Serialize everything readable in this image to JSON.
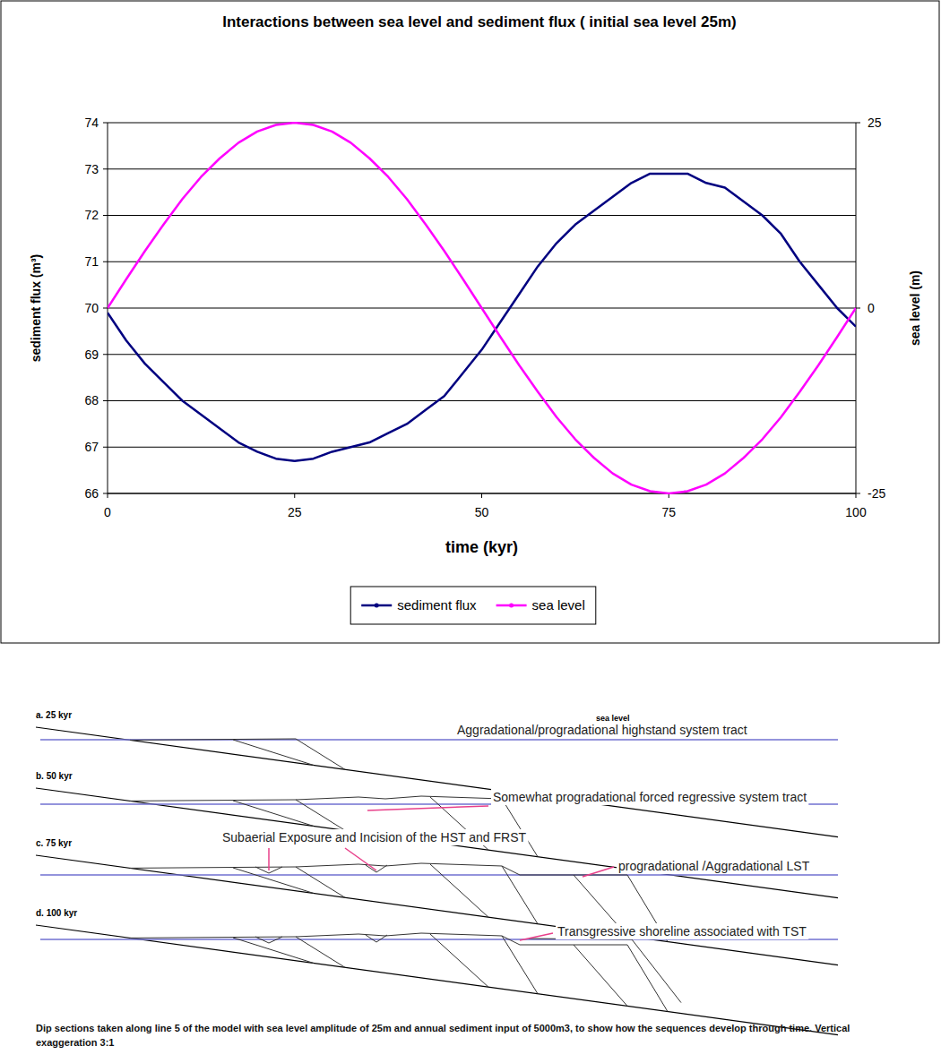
{
  "chart_data": {
    "type": "line",
    "title": "Interactions between sea level and sediment flux ( initial sea level 25m)",
    "x_label": "time (kyr)",
    "y_label": "sediment flux (m³)",
    "y2_label": "sea level (m)",
    "x": [
      0,
      2.5,
      5,
      7.5,
      10,
      12.5,
      15,
      17.5,
      20,
      22.5,
      25,
      27.5,
      30,
      32.5,
      35,
      37.5,
      40,
      42.5,
      45,
      47.5,
      50,
      52.5,
      55,
      57.5,
      60,
      62.5,
      65,
      67.5,
      70,
      72.5,
      75,
      77.5,
      80,
      82.5,
      85,
      87.5,
      90,
      92.5,
      95,
      97.5,
      100
    ],
    "xlim": [
      0,
      100
    ],
    "xticks": [
      0,
      25,
      50,
      75,
      100
    ],
    "ylim": [
      66,
      74
    ],
    "yticks": [
      66,
      67,
      68,
      69,
      70,
      71,
      72,
      73,
      74
    ],
    "y2lim": [
      -25,
      25
    ],
    "y2ticks": [
      -25,
      0,
      25
    ],
    "grid": true,
    "legend": "bottom",
    "series": [
      {
        "name": "sediment flux",
        "color": "#000080",
        "values": [
          69.9,
          69.3,
          68.8,
          68.4,
          68.0,
          67.7,
          67.4,
          67.1,
          66.9,
          66.75,
          66.7,
          66.75,
          66.9,
          67.0,
          67.1,
          67.3,
          67.5,
          67.8,
          68.1,
          68.6,
          69.1,
          69.7,
          70.3,
          70.9,
          71.4,
          71.8,
          72.1,
          72.4,
          72.7,
          72.9,
          72.9,
          72.9,
          72.7,
          72.6,
          72.3,
          72.0,
          71.6,
          71.0,
          70.5,
          70.0,
          69.6
        ]
      },
      {
        "name": "sea level",
        "color": "#ff00ff",
        "axis": "y2",
        "values": [
          0,
          3.9,
          7.7,
          11.3,
          14.7,
          17.7,
          20.2,
          22.3,
          23.8,
          24.7,
          25,
          24.7,
          23.8,
          22.3,
          20.2,
          17.7,
          14.7,
          11.3,
          7.7,
          3.9,
          0,
          -3.9,
          -7.7,
          -11.3,
          -14.7,
          -17.7,
          -20.2,
          -22.3,
          -23.8,
          -24.7,
          -25,
          -24.7,
          -23.8,
          -22.3,
          -20.2,
          -17.7,
          -14.7,
          -11.3,
          -7.7,
          -3.9,
          0
        ]
      }
    ]
  },
  "diagram": {
    "sea_level_label": "sea level",
    "sections": [
      {
        "label": "a. 25 kyr",
        "annotations": [
          "Aggradational/progradational highstand system tract"
        ]
      },
      {
        "label": "b. 50 kyr",
        "annotations": [
          "Somewhat progradational forced regressive system tract"
        ]
      },
      {
        "label": "c. 75 kyr",
        "annotations": [
          "Subaerial Exposure and Incision of the HST and FRST",
          "progradational /Aggradational  LST"
        ]
      },
      {
        "label": "d. 100 kyr",
        "annotations": [
          "Transgressive  shoreline associated with TST"
        ]
      }
    ],
    "caption": "Dip sections taken along line 5 of the model with sea level amplitude of 25m and  annual sediment input of 5000m3, to show how the sequences develop through  time. Vertical exaggeration 3:1"
  }
}
